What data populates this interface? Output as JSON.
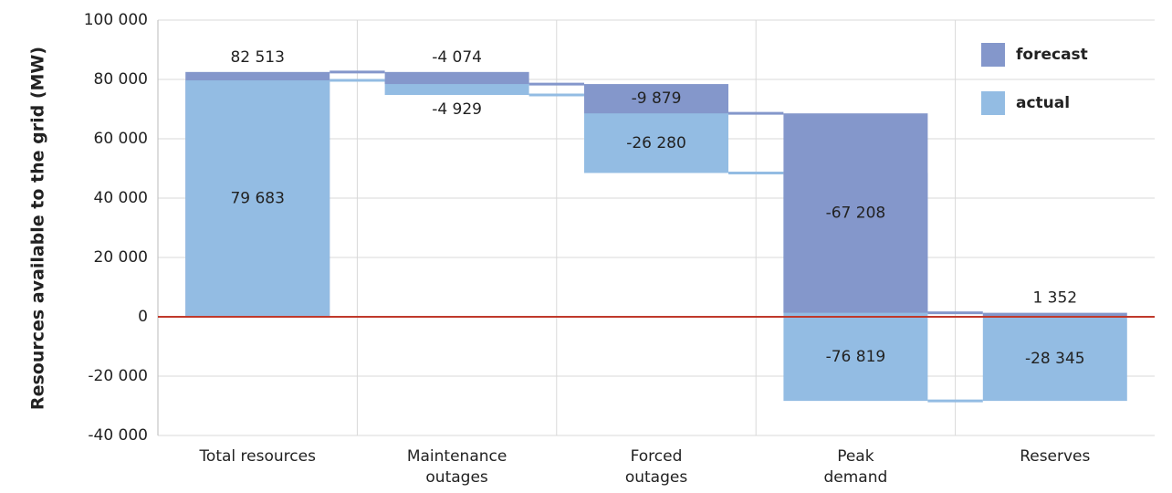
{
  "chart_data": {
    "type": "waterfall",
    "y_axis_label": "Resources available to the grid (MW)",
    "categories": [
      [
        "Total resources"
      ],
      [
        "Maintenance",
        "outages"
      ],
      [
        "Forced",
        "outages"
      ],
      [
        "Peak",
        "demand"
      ],
      [
        "Reserves"
      ]
    ],
    "series": [
      {
        "name": "forecast",
        "color": "#8497cb",
        "values": [
          82513,
          -4074,
          -9879,
          -67208,
          1352
        ],
        "value_labels": [
          "82 513",
          "-4 074",
          "-9 879",
          "-67 208",
          "1 352"
        ]
      },
      {
        "name": "actual",
        "color": "#93bce3",
        "values": [
          79683,
          -4929,
          -26280,
          -76819,
          -28345
        ],
        "value_labels": [
          "79 683",
          "-4 929",
          "-26 280",
          "-76 819",
          "-28 345"
        ]
      }
    ],
    "ylim": [
      -40000,
      100000
    ],
    "yticks": [
      {
        "value": 100000,
        "label": "100 000"
      },
      {
        "value": 80000,
        "label": "80 000"
      },
      {
        "value": 60000,
        "label": "60 000"
      },
      {
        "value": 40000,
        "label": "40 000"
      },
      {
        "value": 20000,
        "label": "20 000"
      },
      0,
      {
        "value": -20000,
        "label": "-20 000"
      },
      {
        "value": -40000,
        "label": "-40 000"
      }
    ],
    "grid": true,
    "zero_line_color": "#c0392b",
    "legend": "top-right"
  }
}
